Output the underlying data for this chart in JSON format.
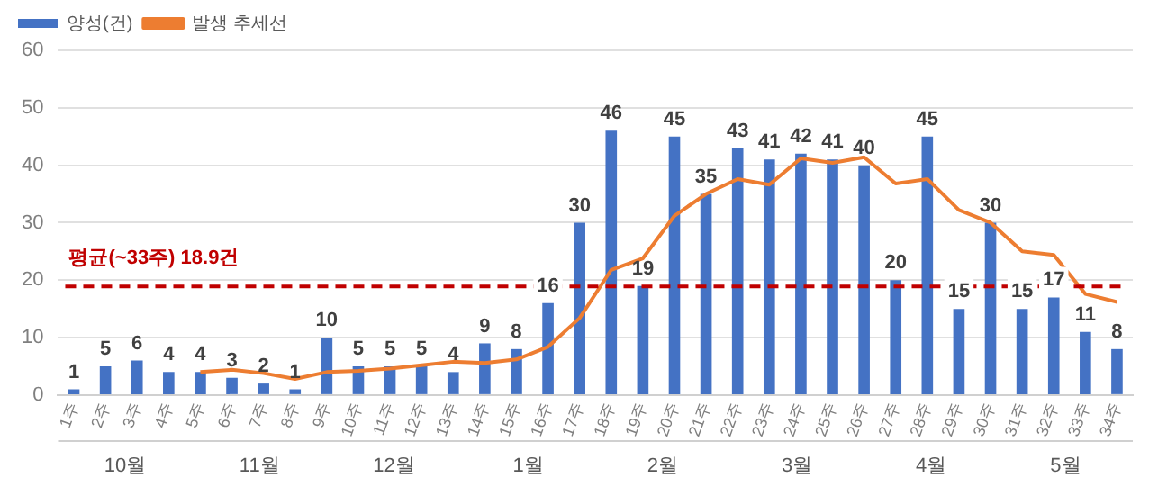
{
  "chart_data": {
    "type": "bar",
    "categories": [
      "1주",
      "2주",
      "3주",
      "4주",
      "5주",
      "6주",
      "7주",
      "8주",
      "9주",
      "10주",
      "11주",
      "12주",
      "13주",
      "14주",
      "15주",
      "16주",
      "17주",
      "18주",
      "19주",
      "20주",
      "21주",
      "22주",
      "23주",
      "24주",
      "25주",
      "26주",
      "27주",
      "28주",
      "29주",
      "30주",
      "31주",
      "32주",
      "33주",
      "34주"
    ],
    "series": [
      {
        "name": "양성(건)",
        "color": "#4472c4",
        "values": [
          1,
          5,
          6,
          4,
          4,
          3,
          2,
          1,
          10,
          5,
          5,
          5,
          4,
          9,
          8,
          16,
          30,
          46,
          19,
          45,
          35,
          43,
          41,
          42,
          41,
          40,
          20,
          45,
          15,
          30,
          15,
          17,
          11,
          8
        ],
        "value_labels": [
          "1",
          "5",
          "6",
          "4",
          "4",
          "3",
          "2",
          "1",
          "10",
          "5",
          "5",
          "5",
          "4",
          "9",
          "8",
          "16",
          "30",
          "46",
          "19",
          "45",
          "35",
          "43",
          "41",
          "42",
          "41",
          "40",
          "20",
          "45",
          "15",
          "30",
          "15",
          "17",
          "11",
          "8"
        ]
      },
      {
        "name": "발생 추세선",
        "type": "line",
        "color": "#ed7d31",
        "values": [
          null,
          null,
          null,
          null,
          4,
          4.4,
          3.8,
          2.8,
          4,
          4.2,
          4.6,
          5.2,
          5.8,
          5.6,
          6.2,
          8.4,
          13.4,
          21.8,
          23.8,
          31.2,
          35,
          37.6,
          36.6,
          41.2,
          40.4,
          41.4,
          36.8,
          37.6,
          32.2,
          30,
          25,
          24.4,
          17.6,
          16.2
        ]
      }
    ],
    "ylim": [
      0,
      60
    ],
    "yticks": [
      0,
      10,
      20,
      30,
      40,
      50,
      60
    ],
    "grid": "y",
    "legend": "top left",
    "marker": "none",
    "ref_lines": [
      {
        "axis": "y",
        "value": 18.9,
        "label": "평균(~33주) 18.9건",
        "color": "#c00000",
        "line_style": "dashed"
      }
    ],
    "annotations": [
      "10월",
      "11월",
      "12월",
      "1월",
      "2월",
      "3월",
      "4월",
      "5월"
    ]
  }
}
